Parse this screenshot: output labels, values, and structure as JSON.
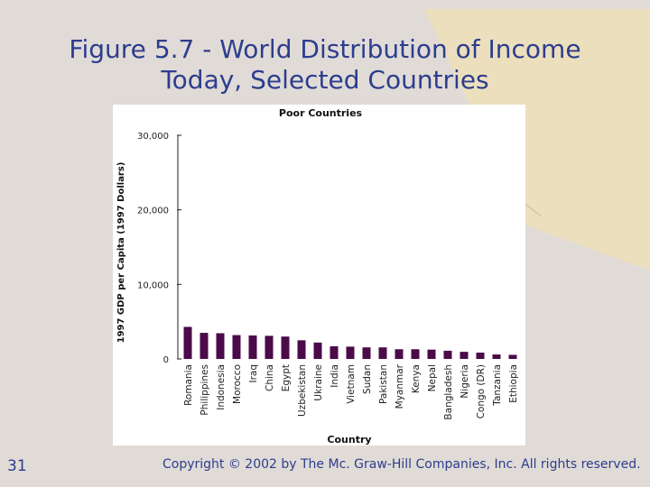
{
  "slide": {
    "title_line1": "Figure 5.7 - World Distribution of Income",
    "title_line2": "Today, Selected Countries",
    "page_number": "31",
    "copyright": "Copyright © 2002 by The Mc. Graw-Hill Companies, Inc.  All rights reserved."
  },
  "colors": {
    "background": "#e0dbd6",
    "accent_shape": "#ecdfbd",
    "title_text": "#2d3d8e",
    "bar": "#4a0b48"
  },
  "chart_data": {
    "type": "bar",
    "title": "Poor Countries",
    "xlabel": "Country",
    "ylabel": "1997 GDP per Capita (1997 Dollars)",
    "ylim": [
      0,
      30000
    ],
    "yticks": [
      0,
      10000,
      20000,
      30000
    ],
    "ytick_labels": [
      "0",
      "10,000",
      "20,000",
      "30,000"
    ],
    "grid": false,
    "categories": [
      "Romania",
      "Philippines",
      "Indonesia",
      "Morocco",
      "Iraq",
      "China",
      "Egypt",
      "Uzbekistan",
      "Ukraine",
      "India",
      "Vietnam",
      "Sudan",
      "Pakistan",
      "Myanmar",
      "Kenya",
      "Nepal",
      "Bangladesh",
      "Nigeria",
      "Congo (DR)",
      "Tanzania",
      "Ethiopia"
    ],
    "values": [
      4300,
      3500,
      3450,
      3200,
      3150,
      3100,
      3000,
      2500,
      2200,
      1700,
      1650,
      1550,
      1550,
      1300,
      1300,
      1250,
      1100,
      950,
      850,
      600,
      550
    ]
  }
}
